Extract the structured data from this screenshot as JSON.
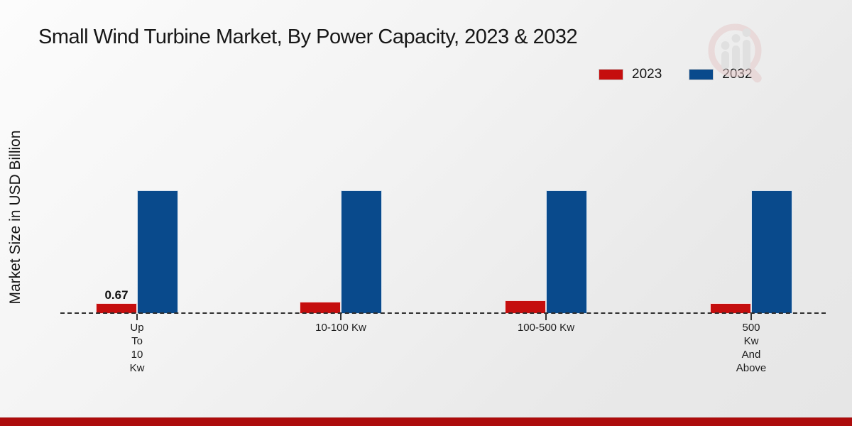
{
  "chart_data": {
    "type": "bar",
    "title": "Small Wind Turbine Market, By Power Capacity, 2023 & 2032",
    "ylabel": "Market Size in USD Billion",
    "xlabel": "",
    "categories": [
      "Up To 10 Kw",
      "10-100 Kw",
      "100-500 Kw",
      "500 Kw And Above"
    ],
    "category_label_lines": [
      [
        "Up",
        "To",
        "10",
        "Kw"
      ],
      [
        "10-100 Kw"
      ],
      [
        "100-500 Kw"
      ],
      [
        "500",
        "Kw",
        "And",
        "Above"
      ]
    ],
    "series": [
      {
        "name": "2023",
        "color": "#c50e0e",
        "values": [
          0.67,
          0.76,
          0.85,
          0.67
        ]
      },
      {
        "name": "2032",
        "color": "#094a8c",
        "values": [
          7.8,
          7.8,
          7.8,
          7.8
        ]
      }
    ],
    "data_labels": [
      {
        "series": "2023",
        "category_index": 0,
        "text": "0.67"
      }
    ],
    "ylim": [
      0,
      8.5
    ],
    "grid": false,
    "axis_style": "dashed-baseline-only",
    "legend_position": "top-right"
  },
  "colors": {
    "series_2023": "#c50e0e",
    "series_2032": "#094a8c",
    "baseline": "#2e2e2e",
    "footer_bar": "#ad0c0c",
    "title_text": "#171717"
  },
  "footer": {
    "bar_color": "#ad0c0c"
  },
  "watermark": {
    "icon": "magnifier-bar-chart-logo"
  }
}
